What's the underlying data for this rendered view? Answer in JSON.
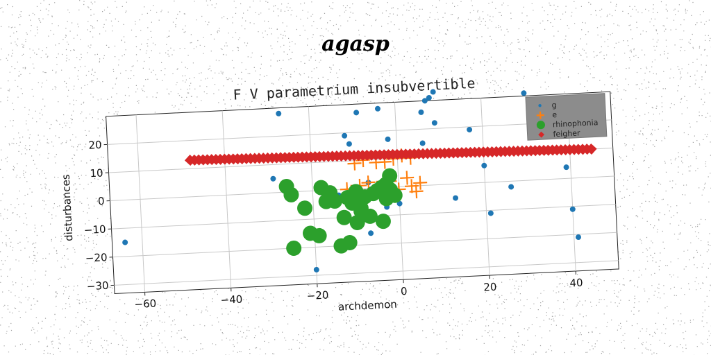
{
  "suptitle": "agasp",
  "chart_data": {
    "type": "scatter",
    "title": "F V parametrium insubvertible",
    "xlabel": "archdemon",
    "ylabel": "disturbances",
    "xlim": [
      -67,
      50
    ],
    "ylim": [
      -33,
      30
    ],
    "xticks": [
      -60,
      -40,
      -20,
      0,
      20,
      40
    ],
    "yticks": [
      -30,
      -20,
      -10,
      0,
      10,
      20
    ],
    "grid": true,
    "legend_position": "top-right",
    "series": [
      {
        "name": "g",
        "marker": "dot",
        "color": "#1f77b4",
        "points": [
          [
            -64,
            -15
          ],
          [
            -29,
            5
          ],
          [
            -27,
            28
          ],
          [
            -20,
            -28
          ],
          [
            -18,
            -4
          ],
          [
            -14,
            -2
          ],
          [
            -12,
            19
          ],
          [
            -11,
            16
          ],
          [
            -9,
            27
          ],
          [
            -7,
            -16
          ],
          [
            -4,
            28
          ],
          [
            -2,
            17
          ],
          [
            -3,
            -7
          ],
          [
            0,
            -6
          ],
          [
            6,
            26
          ],
          [
            7,
            30
          ],
          [
            8,
            31
          ],
          [
            9,
            33
          ],
          [
            9,
            22
          ],
          [
            6,
            15
          ],
          [
            13,
            -5
          ],
          [
            17,
            19
          ],
          [
            20,
            6
          ],
          [
            21,
            -11
          ],
          [
            26,
            -2
          ],
          [
            30,
            31
          ],
          [
            39,
            4
          ],
          [
            40,
            -11
          ],
          [
            41,
            -21
          ],
          [
            -7,
            2
          ]
        ]
      },
      {
        "name": "e",
        "marker": "plus",
        "color": "#ff7f0e",
        "points": [
          [
            -10,
            9
          ],
          [
            -8,
            10
          ],
          [
            -5,
            9
          ],
          [
            -3,
            9
          ],
          [
            -1,
            10
          ],
          [
            1,
            11
          ],
          [
            3,
            10
          ],
          [
            -12,
            0
          ],
          [
            -11,
            -1
          ],
          [
            -9,
            1
          ],
          [
            -7,
            2
          ],
          [
            -5,
            0
          ],
          [
            -2,
            2
          ],
          [
            0,
            -1
          ],
          [
            2,
            3
          ],
          [
            3,
            0
          ],
          [
            5,
            1
          ],
          [
            4,
            -2
          ]
        ]
      },
      {
        "name": "rhinophonia",
        "marker": "big-circle",
        "color": "#2ca02c",
        "points": [
          [
            -26,
            2
          ],
          [
            -25,
            -1
          ],
          [
            -22,
            -6
          ],
          [
            -21,
            -15
          ],
          [
            -19,
            -16
          ],
          [
            -18,
            1
          ],
          [
            -17,
            -4
          ],
          [
            -16,
            -1
          ],
          [
            -15,
            -4
          ],
          [
            -13,
            -10
          ],
          [
            -12,
            -3
          ],
          [
            -11,
            -5
          ],
          [
            -10,
            -1
          ],
          [
            -9,
            -8
          ],
          [
            -8,
            -3
          ],
          [
            -7,
            -10
          ],
          [
            -6,
            -2
          ],
          [
            -5,
            -1
          ],
          [
            -4,
            -12
          ],
          [
            -3,
            1
          ],
          [
            -3,
            -4
          ],
          [
            -2,
            -1
          ],
          [
            -1,
            -3
          ],
          [
            -25,
            -20
          ],
          [
            -14,
            -20
          ],
          [
            -12,
            -19
          ],
          [
            -10,
            -12
          ],
          [
            -9,
            -7
          ],
          [
            -4,
            0
          ],
          [
            -2,
            4
          ]
        ]
      },
      {
        "name": "feigher",
        "marker": "diamond",
        "color": "#d62728",
        "x_start": -48,
        "x_end": 45,
        "y_start": 13,
        "y_end": 10,
        "count": 94
      }
    ]
  }
}
